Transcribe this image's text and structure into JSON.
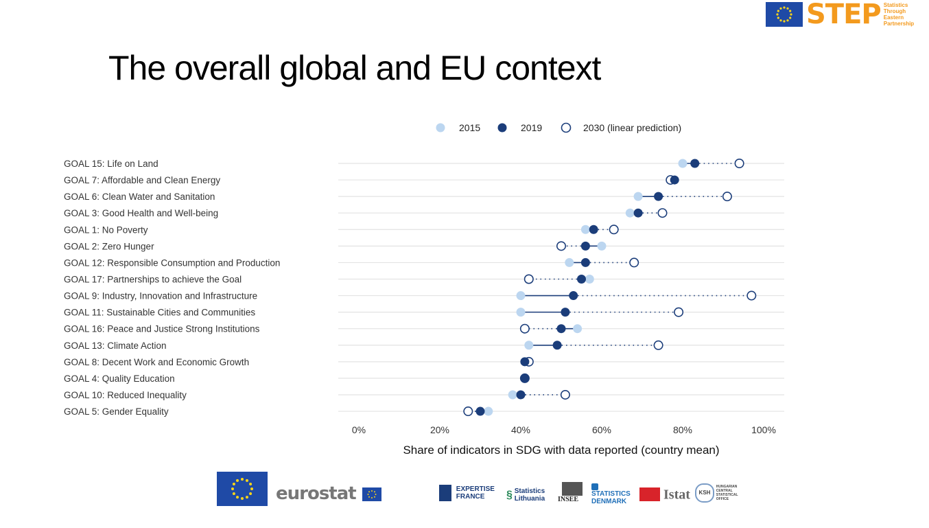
{
  "header": {
    "step_logo_text": "STEP",
    "step_logo_sub": [
      "Statistics",
      "Through",
      "Eastern",
      "Partnership"
    ]
  },
  "slide": {
    "title": "The overall global and EU context"
  },
  "chart_data": {
    "type": "scatter",
    "legend_position": "top",
    "legend": [
      "2015",
      "2019",
      "2030 (linear prediction)"
    ],
    "series_colors": {
      "2015": "#bcd6f0",
      "2019": "#1b3d7a",
      "2030 (linear prediction)": "#ffffff"
    },
    "xlabel": "Share of indicators in SDG with data reported (country mean)",
    "xlim": [
      0,
      100
    ],
    "xticks": [
      "0%",
      "20%",
      "40%",
      "60%",
      "80%",
      "100%"
    ],
    "grid": true,
    "categories": [
      "GOAL 15: Life on Land",
      "GOAL 7: Affordable and Clean Energy",
      "GOAL 6: Clean Water and Sanitation",
      "GOAL 3: Good Health and Well-being",
      "GOAL 1: No Poverty",
      "GOAL 2: Zero Hunger",
      "GOAL 12: Responsible Consumption and Production",
      "GOAL 17: Partnerships to achieve the Goal",
      "GOAL 9: Industry, Innovation and Infrastructure",
      "GOAL 11: Sustainable Cities and Communities",
      "GOAL 16: Peace and Justice Strong Institutions",
      "GOAL 13: Climate Action",
      "GOAL 8: Decent Work and Economic Growth",
      "GOAL 4: Quality Education",
      "GOAL 10: Reduced Inequality",
      "GOAL 5: Gender Equality"
    ],
    "series": [
      {
        "name": "2015",
        "values": [
          80,
          77,
          69,
          67,
          56,
          60,
          52,
          57,
          40,
          40,
          54,
          42,
          41,
          41,
          38,
          32
        ]
      },
      {
        "name": "2019",
        "values": [
          83,
          78,
          74,
          69,
          58,
          56,
          56,
          55,
          53,
          51,
          50,
          49,
          41,
          41,
          40,
          30
        ]
      },
      {
        "name": "2030 (linear prediction)",
        "values": [
          94,
          77,
          91,
          75,
          63,
          50,
          68,
          42,
          97,
          79,
          41,
          74,
          42,
          41,
          51,
          27
        ]
      }
    ]
  },
  "footer": {
    "eurostat": "eurostat",
    "partners": [
      {
        "line1": "EXPERTISE",
        "line2": "FRANCE"
      },
      {
        "line1": "Statistics",
        "line2": "Lithuania"
      },
      {
        "line1": "INSEE",
        "line2": ""
      },
      {
        "line1": "STATISTICS",
        "line2": "DENMARK"
      },
      {
        "line1": "Istat",
        "line2": ""
      },
      {
        "line1": "KSH",
        "line2": "HUNGARIAN CENTRAL STATISTICAL OFFICE"
      }
    ]
  }
}
